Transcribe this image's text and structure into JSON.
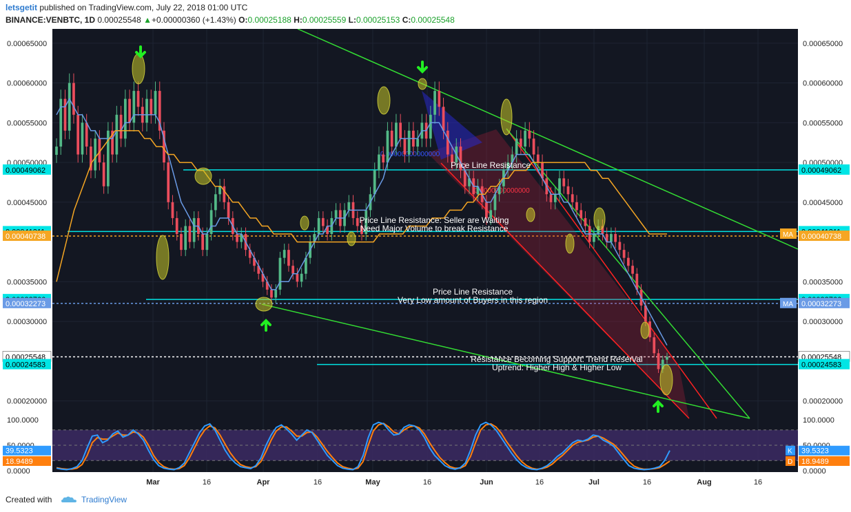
{
  "header": {
    "user": "letsgetit",
    "published": "published on TradingView.com, July 22, 2018 01:00 UTC",
    "symbol": "BINANCE:VENBTC, 1D",
    "last": "0.00025548",
    "change_arrow": "▲",
    "change": "+0.00000360 (+1.43%)",
    "o_label": "O:",
    "o": "0.00025188",
    "h_label": "H:",
    "h": "0.00025559",
    "l_label": "L:",
    "l": "0.00025153",
    "c_label": "C:",
    "c": "0.00025548"
  },
  "footer": {
    "created_with": "Created with",
    "brand": "TradingView",
    "logo_icon": "tradingview-cloud-icon"
  },
  "colors": {
    "background": "#131722",
    "grid": "#1e2433",
    "axis_text": "#222222",
    "candle_up": "#53b987",
    "candle_down": "#eb4d5c",
    "ma_fast": "#6a9be6",
    "ma_slow": "#f5a623",
    "support_line": "#00e5e5",
    "trend_line": "#33dd33",
    "channel_line": "#ff2222",
    "arrow": "#22ee22",
    "stoch_k": "#2f9bff",
    "stoch_d": "#ff7f0e",
    "stoch_band": "#3c2a63"
  },
  "chart_data": [
    {
      "type": "candlestick",
      "symbol": "BINANCE:VENBTC",
      "interval": "1D",
      "x_ticks": [
        "Mar",
        "16",
        "Apr",
        "16",
        "May",
        "16",
        "Jun",
        "16",
        "Jul",
        "16",
        "Aug",
        "16"
      ],
      "y_ticks": [
        "0.00065000",
        "0.00060000",
        "0.00055000",
        "0.00050000",
        "0.00045000",
        "0.00035000",
        "0.00030000",
        "0.00020000"
      ],
      "ylim": [
        0.000178,
        0.000668
      ],
      "series": [
        {
          "name": "",
          "closes": [
            0.00052,
            0.00058,
            0.00054,
            0.0006,
            0.00056,
            0.00051,
            0.00055,
            0.00052,
            0.00049,
            0.00053,
            0.0005,
            0.00047,
            0.00054,
            0.00051,
            0.00056,
            0.00053,
            0.00058,
            0.00055,
            0.00059,
            0.00057,
            0.00055,
            0.00058,
            0.00056,
            0.00059,
            0.00054,
            0.0005,
            0.00045,
            0.00043,
            0.00041,
            0.00039,
            0.00042,
            0.0004,
            0.00043,
            0.00041,
            0.00039,
            0.00041,
            0.00044,
            0.00046,
            0.00047,
            0.00045,
            0.00043,
            0.00041,
            0.0004,
            0.00041,
            0.00039,
            0.00038,
            0.00037,
            0.00036,
            0.00035,
            0.00034,
            0.00033,
            0.00034,
            0.00038,
            0.00039,
            0.00037,
            0.00036,
            0.00035,
            0.00036,
            0.00038,
            0.0004,
            0.00041,
            0.00043,
            0.00042,
            0.00041,
            0.00043,
            0.00044,
            0.00042,
            0.00044,
            0.00045,
            0.00043,
            0.00042,
            0.00041,
            0.00044,
            0.00046,
            0.00049,
            0.00051,
            0.0005,
            0.00054,
            0.00052,
            0.00055,
            0.00053,
            0.00051,
            0.00054,
            0.00052,
            0.00053,
            0.00055,
            0.00053,
            0.00056,
            0.00059,
            0.00057,
            0.00054,
            0.00051,
            0.0005,
            0.00052,
            0.00049,
            0.00047,
            0.00048,
            0.00046,
            0.00047,
            0.00045,
            0.00043,
            0.00044,
            0.00046,
            0.00047,
            0.00049,
            0.0005,
            0.00051,
            0.00053,
            0.00052,
            0.00054,
            0.00053,
            0.00051,
            0.0005,
            0.00048,
            0.00046,
            0.00045,
            0.00046,
            0.00048,
            0.00047,
            0.00046,
            0.00045,
            0.00044,
            0.00043,
            0.00042,
            0.0004,
            0.00041,
            0.00042,
            0.00041,
            0.0004,
            0.00041,
            0.0004,
            0.00039,
            0.00038,
            0.00037,
            0.00036,
            0.00034,
            0.00032,
            0.0003,
            0.00028,
            0.00026,
            0.00024,
            0.00025188,
            0.00025548
          ],
          "ma_fast": [
            0.00056,
            0.00057,
            0.00057,
            0.00058,
            0.00057,
            0.00056,
            0.00056,
            0.00055,
            0.00054,
            0.00054,
            0.00053,
            0.00053,
            0.00053,
            0.00053,
            0.00054,
            0.00054,
            0.00055,
            0.00055,
            0.00056,
            0.00056,
            0.00056,
            0.00056,
            0.00056,
            0.00056,
            0.00055,
            0.00053,
            0.00051,
            0.00049,
            0.00047,
            0.00045,
            0.00044,
            0.00043,
            0.00042,
            0.00042,
            0.00041,
            0.00041,
            0.00042,
            0.00042,
            0.00043,
            0.00043,
            0.00043,
            0.00042,
            0.00041,
            0.00041,
            0.0004,
            0.00039,
            0.00038,
            0.00037,
            0.00036,
            0.00035,
            0.00034,
            0.00034,
            0.00035,
            0.00035,
            0.00035,
            0.00036,
            0.00036,
            0.00037,
            0.00038,
            0.00039,
            0.0004,
            0.00041,
            0.00041,
            0.00042,
            0.00042,
            0.00043,
            0.00043,
            0.00043,
            0.00044,
            0.00044,
            0.00044,
            0.00044,
            0.00044,
            0.00045,
            0.00046,
            0.00047,
            0.00048,
            0.0005,
            0.00051,
            0.00052,
            0.00053,
            0.00053,
            0.00053,
            0.00053,
            0.00053,
            0.00054,
            0.00054,
            0.00055,
            0.00055,
            0.00055,
            0.00054,
            0.00053,
            0.00052,
            0.00051,
            0.0005,
            0.00049,
            0.00048,
            0.00047,
            0.00047,
            0.00046,
            0.00045,
            0.00045,
            0.00046,
            0.00047,
            0.00048,
            0.00049,
            0.0005,
            0.00051,
            0.00051,
            0.00051,
            0.00051,
            0.0005,
            0.00049,
            0.00048,
            0.00047,
            0.00046,
            0.00046,
            0.00046,
            0.00045,
            0.00045,
            0.00044,
            0.00043,
            0.00042,
            0.00041,
            0.00041,
            0.00041,
            0.00041,
            0.00041,
            0.0004,
            0.0004,
            0.00039,
            0.00038,
            0.00037,
            0.00036,
            0.00035,
            0.00034,
            0.00033,
            0.00032,
            0.00031,
            0.0003,
            0.00029,
            0.00028,
            0.00027
          ],
          "ma_slow": [
            0.00035,
            0.00038,
            0.00041,
            0.00044,
            0.00046,
            0.00048,
            0.0005,
            0.00051,
            0.00052,
            0.00053,
            0.00054,
            0.00054,
            0.00054,
            0.00054,
            0.00054,
            0.00053,
            0.00053,
            0.00052,
            0.00052,
            0.00051,
            0.00051,
            0.0005,
            0.0005,
            0.0005,
            0.00049,
            0.00049,
            0.00048,
            0.00047,
            0.00047,
            0.00046,
            0.00045,
            0.00045,
            0.00044,
            0.00043,
            0.00043,
            0.00042,
            0.00042,
            0.00041,
            0.00041,
            0.00041,
            0.00041,
            0.0004,
            0.0004,
            0.0004,
            0.0004,
            0.0004,
            0.0004,
            0.0004,
            0.0004,
            0.0004,
            0.0004,
            0.0004,
            0.0004,
            0.0004,
            0.0004,
            0.00041,
            0.00041,
            0.00041,
            0.00041,
            0.00041,
            0.00042,
            0.00042,
            0.00042,
            0.00042,
            0.00043,
            0.00043,
            0.00043,
            0.00044,
            0.00044,
            0.00044,
            0.00045,
            0.00045,
            0.00046,
            0.00046,
            0.00047,
            0.00047,
            0.00048,
            0.00048,
            0.00049,
            0.00049,
            0.00049,
            0.0005,
            0.0005,
            0.0005,
            0.0005,
            0.0005,
            0.0005,
            0.0005,
            0.0005,
            0.0005,
            0.0005,
            0.00049,
            0.00049,
            0.00048,
            0.00048,
            0.00047,
            0.00046,
            0.00045,
            0.00044,
            0.00043,
            0.00042,
            0.00041,
            0.00041,
            0.00041,
            0.00041
          ]
        }
      ],
      "price_labels": [
        {
          "value": 0.00049062,
          "label": "0.00049062",
          "color": "#00e5e5"
        },
        {
          "value": 0.00041311,
          "label": "0.00041311",
          "color": "#00e5e5"
        },
        {
          "value": 0.00040738,
          "label": "0.00040738",
          "color": "#f5a623"
        },
        {
          "value": 0.00032766,
          "label": "0.00032766",
          "color": "#00e5e5"
        },
        {
          "value": 0.00032273,
          "label": "0.00032273",
          "color": "#6a9be6"
        },
        {
          "value": 0.00025548,
          "label": "0.00025548",
          "color": "#ffffff"
        },
        {
          "value": 0.00024583,
          "label": "0.00024583",
          "color": "#00e5e5"
        }
      ],
      "ma_tags": [
        "MA",
        "MA"
      ],
      "annotations": [
        "Price Line Resistance",
        "Price Line Resistance: Seller are Waiting",
        "Need Major Volume to break Resistance",
        "Price Line Resistance",
        "Very Low amount of Buyers in this region",
        "Resistance Becoming Support: Trend Reserval",
        "Uptrend: Higher High & Higher Low"
      ],
      "channel_labels": [
        "0.00000000000000",
        "0.0000000000000"
      ]
    },
    {
      "type": "line",
      "indicator": "stochastic",
      "y_ticks": [
        "100.0000",
        "50.0000",
        "0.0000"
      ],
      "ylim": [
        0,
        100
      ],
      "band": [
        20,
        80
      ],
      "k_label": "K",
      "k_value": "39.5323",
      "d_label": "D",
      "d_value": "18.9489",
      "series": [
        {
          "name": "K",
          "values": [
            5,
            3,
            2,
            4,
            8,
            20,
            45,
            68,
            70,
            55,
            60,
            72,
            78,
            66,
            70,
            80,
            72,
            60,
            40,
            22,
            10,
            5,
            3,
            2,
            6,
            15,
            35,
            55,
            75,
            88,
            92,
            80,
            60,
            40,
            25,
            15,
            8,
            6,
            4,
            10,
            25,
            50,
            70,
            85,
            90,
            82,
            72,
            60,
            70,
            80,
            75,
            60,
            45,
            30,
            20,
            10,
            5,
            3,
            2,
            8,
            30,
            65,
            90,
            95,
            92,
            80,
            70,
            72,
            85,
            90,
            88,
            80,
            65,
            45,
            30,
            20,
            10,
            5,
            3,
            6,
            15,
            40,
            70,
            90,
            95,
            90,
            80,
            65,
            50,
            35,
            22,
            12,
            6,
            3,
            2,
            5,
            10,
            18,
            28,
            35,
            45,
            55,
            60,
            58,
            62,
            70,
            68,
            60,
            55,
            48,
            35,
            22,
            10,
            5,
            3,
            2,
            3,
            5,
            8,
            20,
            39.5323
          ]
        },
        {
          "name": "D",
          "values": [
            6,
            4,
            3,
            3,
            5,
            12,
            30,
            55,
            65,
            62,
            62,
            68,
            74,
            70,
            70,
            76,
            74,
            66,
            50,
            30,
            16,
            8,
            4,
            3,
            4,
            10,
            25,
            45,
            65,
            80,
            88,
            84,
            70,
            52,
            35,
            22,
            12,
            8,
            6,
            8,
            18,
            38,
            60,
            78,
            86,
            86,
            78,
            68,
            68,
            75,
            76,
            66,
            52,
            38,
            26,
            15,
            8,
            5,
            3,
            5,
            18,
            50,
            78,
            90,
            93,
            86,
            76,
            72,
            80,
            86,
            88,
            84,
            72,
            55,
            40,
            26,
            16,
            8,
            5,
            5,
            10,
            28,
            55,
            80,
            90,
            92,
            86,
            74,
            58,
            44,
            30,
            18,
            10,
            5,
            3,
            4,
            7,
            13,
            22,
            30,
            40,
            50,
            56,
            58,
            60,
            66,
            68,
            64,
            58,
            52,
            42,
            30,
            18,
            9,
            5,
            3,
            3,
            4,
            6,
            12,
            18.9489
          ]
        }
      ]
    }
  ]
}
